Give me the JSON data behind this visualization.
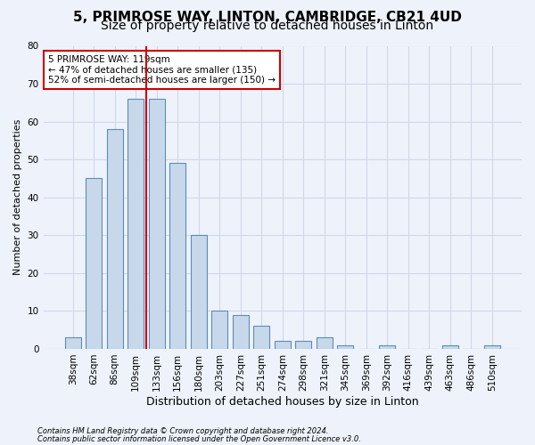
{
  "title": "5, PRIMROSE WAY, LINTON, CAMBRIDGE, CB21 4UD",
  "subtitle": "Size of property relative to detached houses in Linton",
  "xlabel": "Distribution of detached houses by size in Linton",
  "ylabel": "Number of detached properties",
  "footnote1": "Contains HM Land Registry data © Crown copyright and database right 2024.",
  "footnote2": "Contains public sector information licensed under the Open Government Licence v3.0.",
  "bar_labels": [
    "38sqm",
    "62sqm",
    "86sqm",
    "109sqm",
    "133sqm",
    "156sqm",
    "180sqm",
    "203sqm",
    "227sqm",
    "251sqm",
    "274sqm",
    "298sqm",
    "321sqm",
    "345sqm",
    "369sqm",
    "392sqm",
    "416sqm",
    "439sqm",
    "463sqm",
    "486sqm",
    "510sqm"
  ],
  "bar_values": [
    3,
    45,
    58,
    66,
    66,
    49,
    30,
    10,
    9,
    6,
    2,
    2,
    3,
    1,
    0,
    1,
    0,
    0,
    1,
    0,
    1
  ],
  "bar_color": "#c8d8eb",
  "bar_edge_color": "#5b8db8",
  "ylim": [
    0,
    80
  ],
  "yticks": [
    0,
    10,
    20,
    30,
    40,
    50,
    60,
    70,
    80
  ],
  "vline_color": "#cc0000",
  "vline_bin_index": 3,
  "annotation_text": "5 PRIMROSE WAY: 119sqm\n← 47% of detached houses are smaller (135)\n52% of semi-detached houses are larger (150) →",
  "annotation_box_facecolor": "#ffffff",
  "annotation_box_edgecolor": "#cc0000",
  "background_color": "#eef2fb",
  "grid_color": "#d0d8e8",
  "title_fontsize": 11,
  "subtitle_fontsize": 10,
  "xlabel_fontsize": 9,
  "ylabel_fontsize": 8,
  "tick_fontsize": 7.5,
  "annotation_fontsize": 7.5,
  "footnote_fontsize": 6
}
